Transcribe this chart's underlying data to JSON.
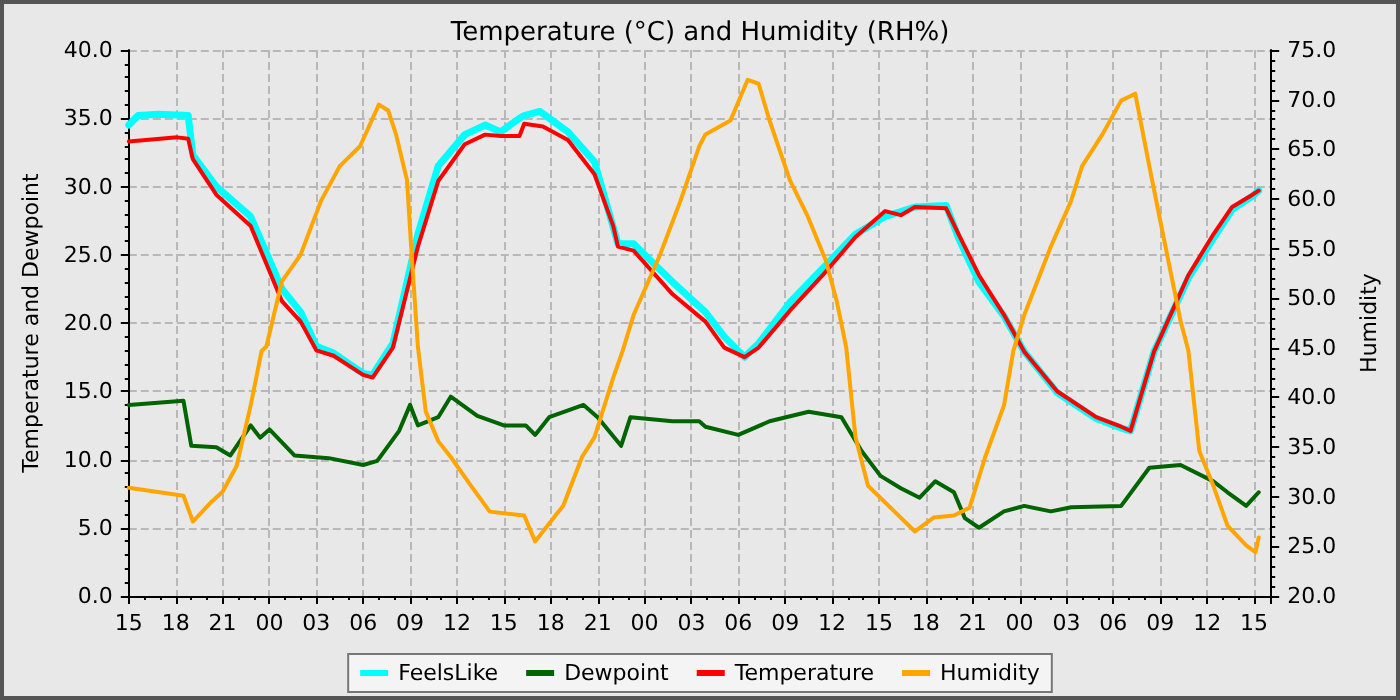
{
  "chart_data": {
    "type": "line",
    "title": "Temperature (°C) and Humidity (RH%)",
    "ylabel": "Temperature and Dewpoint",
    "y2label": "Humidity",
    "xlim": [
      15,
      88.1
    ],
    "xticks": [
      {
        "value": 15,
        "label": "15"
      },
      {
        "value": 18,
        "label": "18"
      },
      {
        "value": 21,
        "label": "21"
      },
      {
        "value": 24,
        "label": "00"
      },
      {
        "value": 27,
        "label": "03"
      },
      {
        "value": 30,
        "label": "06"
      },
      {
        "value": 33,
        "label": "09"
      },
      {
        "value": 36,
        "label": "12"
      },
      {
        "value": 39,
        "label": "15"
      },
      {
        "value": 42,
        "label": "18"
      },
      {
        "value": 45,
        "label": "21"
      },
      {
        "value": 48,
        "label": "00"
      },
      {
        "value": 51,
        "label": "03"
      },
      {
        "value": 54,
        "label": "06"
      },
      {
        "value": 57,
        "label": "09"
      },
      {
        "value": 60,
        "label": "12"
      },
      {
        "value": 63,
        "label": "15"
      },
      {
        "value": 66,
        "label": "18"
      },
      {
        "value": 69,
        "label": "21"
      },
      {
        "value": 72,
        "label": "00"
      },
      {
        "value": 75,
        "label": "03"
      },
      {
        "value": 78,
        "label": "06"
      },
      {
        "value": 81,
        "label": "09"
      },
      {
        "value": 84,
        "label": "12"
      },
      {
        "value": 87,
        "label": "15"
      }
    ],
    "ylim": [
      0,
      40
    ],
    "yticks": [
      {
        "value": 0,
        "label": "0.0"
      },
      {
        "value": 5,
        "label": "5.0"
      },
      {
        "value": 10,
        "label": "10.0"
      },
      {
        "value": 15,
        "label": "15.0"
      },
      {
        "value": 20,
        "label": "20.0"
      },
      {
        "value": 25,
        "label": "25.0"
      },
      {
        "value": 30,
        "label": "30.0"
      },
      {
        "value": 35,
        "label": "35.0"
      },
      {
        "value": 40,
        "label": "40.0"
      }
    ],
    "y2lim": [
      20,
      75
    ],
    "y2ticks": [
      {
        "value": 20,
        "label": "20.0"
      },
      {
        "value": 25,
        "label": "25.0"
      },
      {
        "value": 30,
        "label": "30.0"
      },
      {
        "value": 35,
        "label": "35.0"
      },
      {
        "value": 40,
        "label": "40.0"
      },
      {
        "value": 45,
        "label": "45.0"
      },
      {
        "value": 50,
        "label": "50.0"
      },
      {
        "value": 55,
        "label": "55.0"
      },
      {
        "value": 60,
        "label": "60.0"
      },
      {
        "value": 65,
        "label": "65.0"
      },
      {
        "value": 70,
        "label": "70.0"
      },
      {
        "value": 75,
        "label": "75.0"
      }
    ],
    "grid": true,
    "legend": "bottom",
    "marker": "none",
    "line_style": "solid",
    "series": [
      {
        "name": "FeelsLike",
        "color": "#00ffff",
        "x": [
          15,
          15.6,
          16.9,
          18.8,
          19.1,
          20.6,
          22.8,
          24.8,
          26,
          27,
          28.1,
          30,
          30.6,
          31.9,
          33.5,
          34.8,
          36.5,
          37.8,
          38.8,
          40,
          40.3,
          41.3,
          43.1,
          44.8,
          46.3,
          47.3,
          49.8,
          51.9,
          53.1,
          54.4,
          55.3,
          57.3,
          59.4,
          61.5,
          63.4,
          65.3,
          67.3,
          68.1,
          69.4,
          71,
          72.3,
          74.4,
          76.9,
          78.5,
          79.1,
          80.6,
          82.8,
          84.4,
          85.6,
          86.9,
          87.3
        ],
        "values": [
          34.5,
          35.2,
          35.3,
          35.2,
          32.3,
          30.0,
          27.8,
          22.5,
          20.8,
          18.3,
          17.8,
          16.3,
          16.2,
          18.5,
          26.5,
          31.5,
          33.8,
          34.5,
          34.0,
          35.0,
          35.2,
          35.5,
          34.0,
          31.8,
          25.8,
          25.8,
          23.0,
          20.8,
          19.0,
          17.5,
          18.5,
          21.5,
          24.0,
          26.5,
          27.8,
          28.5,
          28.6,
          26.2,
          23.0,
          20.5,
          17.9,
          14.9,
          13.0,
          12.3,
          12.1,
          17.9,
          23.3,
          26.2,
          28.3,
          29.3,
          29.7
        ]
      },
      {
        "name": "Dewpoint",
        "color": "#006400",
        "x": [
          15,
          18.5,
          19,
          20.6,
          21.5,
          22.8,
          23.4,
          24,
          25.6,
          27.8,
          30,
          30.9,
          32.3,
          33,
          33.5,
          34.8,
          35.6,
          37.3,
          39,
          40.4,
          41,
          41.9,
          44.1,
          45,
          46.5,
          47.1,
          49.8,
          51.5,
          51.9,
          54,
          56,
          58.5,
          60.6,
          61.9,
          63.1,
          64.4,
          65.6,
          66.6,
          67.8,
          68.5,
          69.4,
          71,
          72.3,
          74,
          75.3,
          78.5,
          80.3,
          82.3,
          84.4,
          85.3,
          86.5,
          87.3
        ],
        "values": [
          14.0,
          14.3,
          11.0,
          10.9,
          10.3,
          12.5,
          11.6,
          12.2,
          10.3,
          10.1,
          9.6,
          9.9,
          12.1,
          14.0,
          12.5,
          13.1,
          14.6,
          13.2,
          12.5,
          12.5,
          11.8,
          13.1,
          14.0,
          13.1,
          11.0,
          13.1,
          12.8,
          12.8,
          12.4,
          11.8,
          12.8,
          13.5,
          13.1,
          10.6,
          8.8,
          7.9,
          7.2,
          8.4,
          7.6,
          5.7,
          5.0,
          6.2,
          6.6,
          6.2,
          6.5,
          6.6,
          9.4,
          9.6,
          8.4,
          7.6,
          6.6,
          7.6
        ]
      },
      {
        "name": "Temperature",
        "color": "#ff0000",
        "x": [
          15,
          18.1,
          18.8,
          19.1,
          20.6,
          22.8,
          24.8,
          26,
          27,
          28.1,
          30,
          30.6,
          31.9,
          33.5,
          34.8,
          36.5,
          37.8,
          38.8,
          40,
          40.3,
          41.5,
          43.1,
          44.8,
          46,
          46.3,
          47.3,
          49.8,
          51.9,
          53.1,
          54.4,
          55.3,
          57.3,
          59.4,
          61.5,
          63.4,
          64.4,
          65.3,
          67.3,
          68.1,
          69.4,
          71,
          72.3,
          74.4,
          76.9,
          78.5,
          79.1,
          80.6,
          82.8,
          84.4,
          85.6,
          86.9,
          87.3
        ],
        "values": [
          33.3,
          33.6,
          33.5,
          32.0,
          29.4,
          27.1,
          21.6,
          20.1,
          18.0,
          17.6,
          16.2,
          16.0,
          18.2,
          25.6,
          30.4,
          33.1,
          33.8,
          33.7,
          33.7,
          34.6,
          34.4,
          33.4,
          30.9,
          27.1,
          25.6,
          25.3,
          22.1,
          20.1,
          18.2,
          17.5,
          18.2,
          20.9,
          23.5,
          26.3,
          28.2,
          27.9,
          28.5,
          28.4,
          26.5,
          23.5,
          20.6,
          17.9,
          15.0,
          13.1,
          12.4,
          12.1,
          17.9,
          23.5,
          26.5,
          28.5,
          29.4,
          29.7
        ]
      },
      {
        "name": "Humidity",
        "color": "#ffa500",
        "axis": "y2",
        "x": [
          15,
          18.5,
          19.1,
          20.3,
          21,
          21.9,
          22.8,
          23.5,
          23.8,
          24.8,
          26,
          27.3,
          28.5,
          29.8,
          31,
          31.6,
          32.1,
          32.8,
          33.1,
          33.5,
          34,
          34.8,
          35.6,
          36.9,
          38.1,
          40.3,
          41,
          41.5,
          42.8,
          44,
          44.8,
          46,
          46.6,
          47.3,
          49,
          50.3,
          51.5,
          51.9,
          53.5,
          54.6,
          55.3,
          56,
          57.3,
          58.4,
          59.6,
          60.3,
          60.9,
          61.5,
          62.3,
          64,
          65.3,
          66.5,
          67.8,
          68.8,
          69.8,
          71,
          71.6,
          72.3,
          74,
          75.3,
          76,
          77.3,
          78.5,
          79.4,
          80.3,
          81,
          82.3,
          82.8,
          83.5,
          84.4,
          85.3,
          86.5,
          87.1,
          87.3
        ],
        "values": [
          30.9,
          30.1,
          27.5,
          29.5,
          30.5,
          33.1,
          39.2,
          44.7,
          45.1,
          51.7,
          54.4,
          59.8,
          63.3,
          65.3,
          69.5,
          68.9,
          66.5,
          61.9,
          54.4,
          45.1,
          38.6,
          35.6,
          34.0,
          31.1,
          28.5,
          28.1,
          25.5,
          26.5,
          29.1,
          34.0,
          36.0,
          42.0,
          44.7,
          48.3,
          54.4,
          59.8,
          65.3,
          66.5,
          67.9,
          72.0,
          71.6,
          67.9,
          61.9,
          58.4,
          53.8,
          49.7,
          45.1,
          36.0,
          31.1,
          28.5,
          26.5,
          27.9,
          28.1,
          28.9,
          34.0,
          39.2,
          44.7,
          48.3,
          55.2,
          59.8,
          63.3,
          66.5,
          69.9,
          70.6,
          63.3,
          57.8,
          47.7,
          44.7,
          34.6,
          31.1,
          27.1,
          25.1,
          24.4,
          25.9
        ]
      }
    ]
  }
}
